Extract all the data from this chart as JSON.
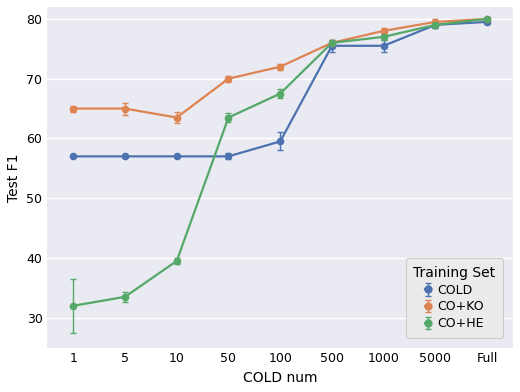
{
  "x_labels": [
    "1",
    "5",
    "10",
    "50",
    "100",
    "500",
    "1000",
    "5000",
    "Full"
  ],
  "x_positions": [
    0,
    1,
    2,
    3,
    4,
    5,
    6,
    7,
    8
  ],
  "COLD_y": [
    57.0,
    57.0,
    57.0,
    57.0,
    59.5,
    75.5,
    75.5,
    79.0,
    79.5
  ],
  "COLD_err": [
    0.0,
    0.0,
    0.0,
    0.5,
    1.5,
    1.0,
    1.0,
    0.5,
    0.3
  ],
  "COKO_y": [
    65.0,
    65.0,
    63.5,
    70.0,
    72.0,
    76.0,
    78.0,
    79.5,
    80.0
  ],
  "COKO_err": [
    0.5,
    1.0,
    1.0,
    0.5,
    0.5,
    0.5,
    0.5,
    0.5,
    0.3
  ],
  "COHE_y": [
    32.0,
    33.5,
    39.5,
    63.5,
    67.5,
    76.0,
    77.0,
    79.0,
    80.0
  ],
  "COHE_err": [
    4.5,
    0.8,
    0.5,
    0.8,
    0.8,
    0.5,
    0.5,
    0.5,
    0.3
  ],
  "ylabel": "Test F1",
  "xlabel": "COLD num",
  "legend_title": "Training Set",
  "ylim": [
    25,
    82
  ],
  "yticks": [
    30,
    40,
    50,
    60,
    70,
    80
  ],
  "color_COLD": "#4C72B0",
  "color_COKO": "#DD8452",
  "color_COHE": "#55A868",
  "bg_color": "#EAEAF2",
  "grid_color": "white"
}
